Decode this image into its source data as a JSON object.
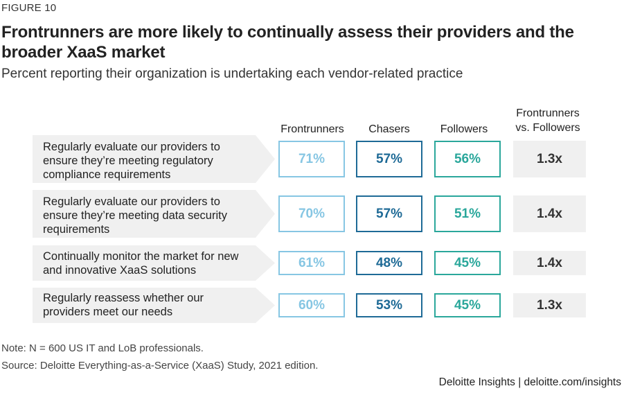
{
  "figure_label": "FIGURE 10",
  "chart_data": {
    "type": "table",
    "title": "Frontrunners are more likely to continually assess their providers and the broader XaaS market",
    "subtitle": "Percent reporting their organization is undertaking each vendor-related practice",
    "columns": [
      "Frontrunners",
      "Chasers",
      "Followers",
      "Frontrunners vs. Followers"
    ],
    "colors": {
      "Frontrunners": "#86c6e3",
      "Chasers": "#1e6a96",
      "Followers": "#2aa79b"
    },
    "rows": [
      {
        "label": "Regularly evaluate our providers to ensure they’re meeting regulatory compliance requirements",
        "lines": [
          "Regularly evaluate our providers to",
          "ensure they’re meeting regulatory",
          "compliance requirements"
        ],
        "frontrunners": 71,
        "chasers": 57,
        "followers": 56,
        "frontrunners_display": "71%",
        "chasers_display": "57%",
        "followers_display": "56%",
        "ratio": "1.3x"
      },
      {
        "label": "Regularly evaluate our providers to ensure they’re meeting data security requirements",
        "lines": [
          "Regularly evaluate our providers to",
          "ensure they’re meeting data security",
          "requirements"
        ],
        "frontrunners": 70,
        "chasers": 57,
        "followers": 51,
        "frontrunners_display": "70%",
        "chasers_display": "57%",
        "followers_display": "51%",
        "ratio": "1.4x"
      },
      {
        "label": "Continually monitor the market for new and innovative XaaS solutions",
        "lines": [
          "Continually monitor the market for new",
          "and innovative XaaS solutions"
        ],
        "frontrunners": 61,
        "chasers": 48,
        "followers": 45,
        "frontrunners_display": "61%",
        "chasers_display": "48%",
        "followers_display": "45%",
        "ratio": "1.4x"
      },
      {
        "label": "Regularly reassess whether our providers meet our needs",
        "lines": [
          "Regularly reassess whether our",
          "providers meet our needs"
        ],
        "frontrunners": 60,
        "chasers": 53,
        "followers": 45,
        "frontrunners_display": "60%",
        "chasers_display": "53%",
        "followers_display": "45%",
        "ratio": "1.3x"
      }
    ]
  },
  "headers": {
    "frontrunners": "Frontrunners",
    "chasers": "Chasers",
    "followers": "Followers",
    "ratio_line1": "Frontrunners",
    "ratio_line2": "vs. Followers"
  },
  "notes": {
    "note": "Note: N = 600 US IT and LoB professionals.",
    "source": "Source: Deloitte Everything-as-a-Service (XaaS) Study, 2021 edition."
  },
  "credit": "Deloitte Insights | deloitte.com/insights"
}
